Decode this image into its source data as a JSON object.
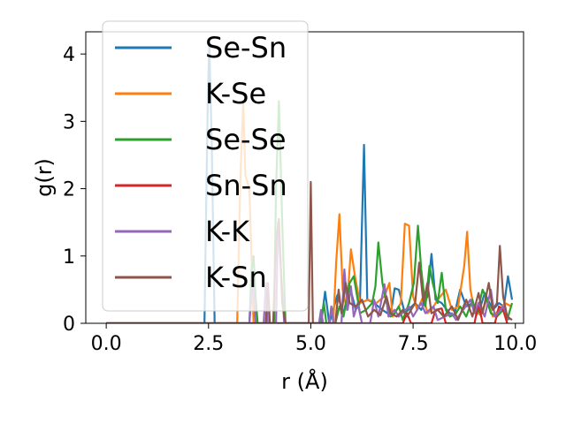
{
  "chart_data": {
    "type": "line",
    "title": "",
    "xlabel": "r (Å)",
    "ylabel": "g(r)",
    "xlim": [
      -0.5,
      10.2
    ],
    "ylim": [
      0,
      4.33
    ],
    "xticks": [
      0.0,
      2.5,
      5.0,
      7.5,
      10.0
    ],
    "xtick_labels": [
      "0.0",
      "2.5",
      "5.0",
      "7.5",
      "10.0"
    ],
    "yticks": [
      0,
      1,
      2,
      3,
      4
    ],
    "ytick_labels": [
      "0",
      "1",
      "2",
      "3",
      "4"
    ],
    "grid": false,
    "legend_position": "upper-left",
    "series": [
      {
        "name": "Se-Sn",
        "color": "#1f77b4",
        "points": [
          [
            0,
            0
          ],
          [
            2.4,
            0
          ],
          [
            2.48,
            3.3
          ],
          [
            2.52,
            4.15
          ],
          [
            2.58,
            2.6
          ],
          [
            2.65,
            0
          ],
          [
            5.25,
            0
          ],
          [
            5.35,
            0.47
          ],
          [
            5.45,
            0
          ],
          [
            5.65,
            0.42
          ],
          [
            5.8,
            0.15
          ],
          [
            5.95,
            0.55
          ],
          [
            6.1,
            0.2
          ],
          [
            6.2,
            0.3
          ],
          [
            6.3,
            2.65
          ],
          [
            6.38,
            0.35
          ],
          [
            6.55,
            0.3
          ],
          [
            6.75,
            0.2
          ],
          [
            6.95,
            0.12
          ],
          [
            7.05,
            0.52
          ],
          [
            7.15,
            0.5
          ],
          [
            7.3,
            0.15
          ],
          [
            7.55,
            0.3
          ],
          [
            7.7,
            0.2
          ],
          [
            7.85,
            0.4
          ],
          [
            7.95,
            1.03
          ],
          [
            8.05,
            0.35
          ],
          [
            8.2,
            0.3
          ],
          [
            8.35,
            0.18
          ],
          [
            8.5,
            0.1
          ],
          [
            8.65,
            0.5
          ],
          [
            8.8,
            0.25
          ],
          [
            8.95,
            0.3
          ],
          [
            9.1,
            0.15
          ],
          [
            9.25,
            0.45
          ],
          [
            9.45,
            0.2
          ],
          [
            9.6,
            0.3
          ],
          [
            9.72,
            0.25
          ],
          [
            9.82,
            0.7
          ],
          [
            9.92,
            0.35
          ]
        ]
      },
      {
        "name": "K-Se",
        "color": "#ff7f0e",
        "points": [
          [
            0,
            0
          ],
          [
            3.2,
            0
          ],
          [
            3.28,
            2.2
          ],
          [
            3.35,
            3.3
          ],
          [
            3.4,
            2.2
          ],
          [
            3.5,
            2.0
          ],
          [
            3.6,
            0
          ],
          [
            5.55,
            0
          ],
          [
            5.62,
            0.9
          ],
          [
            5.7,
            1.62
          ],
          [
            5.78,
            0.5
          ],
          [
            5.88,
            0.2
          ],
          [
            5.98,
            1.1
          ],
          [
            6.08,
            0.7
          ],
          [
            6.2,
            0.3
          ],
          [
            6.4,
            0.35
          ],
          [
            6.6,
            0.3
          ],
          [
            6.8,
            0.4
          ],
          [
            6.92,
            0.6
          ],
          [
            7.0,
            0.1
          ],
          [
            7.2,
            0.3
          ],
          [
            7.3,
            1.48
          ],
          [
            7.4,
            1.45
          ],
          [
            7.5,
            0.4
          ],
          [
            7.6,
            0.2
          ],
          [
            7.75,
            0.4
          ],
          [
            7.85,
            0.15
          ],
          [
            7.95,
            0.2
          ],
          [
            8.1,
            0.35
          ],
          [
            8.3,
            0.5
          ],
          [
            8.45,
            0.2
          ],
          [
            8.6,
            0.25
          ],
          [
            8.75,
            0.85
          ],
          [
            8.82,
            1.36
          ],
          [
            8.9,
            0.5
          ],
          [
            9.0,
            0.2
          ],
          [
            9.15,
            0.12
          ],
          [
            9.3,
            0.35
          ],
          [
            9.45,
            0.1
          ],
          [
            9.6,
            0.2
          ],
          [
            9.75,
            0.3
          ],
          [
            9.9,
            0.25
          ]
        ]
      },
      {
        "name": "Se-Se",
        "color": "#2ca02c",
        "points": [
          [
            0,
            0
          ],
          [
            3.5,
            0
          ],
          [
            3.55,
            0.8
          ],
          [
            3.6,
            1.0
          ],
          [
            3.65,
            0.4
          ],
          [
            3.7,
            0
          ],
          [
            4.1,
            0
          ],
          [
            4.15,
            2.0
          ],
          [
            4.22,
            3.3
          ],
          [
            4.3,
            1.5
          ],
          [
            4.38,
            0
          ],
          [
            5.25,
            0
          ],
          [
            5.32,
            0.3
          ],
          [
            5.38,
            0
          ],
          [
            5.6,
            0
          ],
          [
            5.7,
            0.25
          ],
          [
            5.8,
            0.1
          ],
          [
            5.95,
            0.6
          ],
          [
            6.05,
            0.7
          ],
          [
            6.2,
            0.15
          ],
          [
            6.35,
            0.2
          ],
          [
            6.5,
            0.3
          ],
          [
            6.58,
            0.55
          ],
          [
            6.65,
            1.2
          ],
          [
            6.75,
            0.6
          ],
          [
            6.85,
            0.3
          ],
          [
            6.95,
            0.1
          ],
          [
            7.05,
            0.15
          ],
          [
            7.15,
            0.25
          ],
          [
            7.25,
            0.05
          ],
          [
            7.4,
            0.3
          ],
          [
            7.52,
            0.6
          ],
          [
            7.62,
            1.45
          ],
          [
            7.7,
            0.8
          ],
          [
            7.8,
            0.25
          ],
          [
            7.9,
            0.85
          ],
          [
            7.98,
            0.6
          ],
          [
            8.1,
            0.3
          ],
          [
            8.2,
            0.75
          ],
          [
            8.3,
            0.2
          ],
          [
            8.4,
            0.1
          ],
          [
            8.55,
            0.15
          ],
          [
            8.65,
            0.25
          ],
          [
            8.8,
            0.1
          ],
          [
            8.95,
            0.35
          ],
          [
            9.05,
            0.12
          ],
          [
            9.2,
            0.5
          ],
          [
            9.3,
            0.35
          ],
          [
            9.4,
            0.15
          ],
          [
            9.55,
            0.1
          ],
          [
            9.7,
            0.2
          ],
          [
            9.8,
            0.05
          ],
          [
            9.92,
            0.3
          ]
        ]
      },
      {
        "name": "Sn-Sn",
        "color": "#d62728",
        "points": [
          [
            0,
            0
          ],
          [
            7.25,
            0
          ],
          [
            7.35,
            0.15
          ],
          [
            7.45,
            0
          ],
          [
            7.95,
            0
          ],
          [
            8.05,
            0.2
          ],
          [
            8.2,
            0.22
          ],
          [
            8.3,
            0
          ],
          [
            9.0,
            0
          ],
          [
            9.1,
            0.3
          ],
          [
            9.2,
            0
          ],
          [
            9.5,
            0
          ],
          [
            9.6,
            0.25
          ],
          [
            9.7,
            0.2
          ],
          [
            9.8,
            0
          ]
        ]
      },
      {
        "name": "K-K",
        "color": "#9467bd",
        "points": [
          [
            0,
            0
          ],
          [
            3.5,
            0
          ],
          [
            3.55,
            0.4
          ],
          [
            3.6,
            0.6
          ],
          [
            3.65,
            0
          ],
          [
            3.85,
            0
          ],
          [
            3.9,
            0.6
          ],
          [
            3.95,
            0
          ],
          [
            4.15,
            0
          ],
          [
            4.2,
            1.5
          ],
          [
            4.28,
            0.7
          ],
          [
            4.35,
            0
          ],
          [
            5.2,
            0
          ],
          [
            5.25,
            0.2
          ],
          [
            5.3,
            0
          ],
          [
            5.45,
            0
          ],
          [
            5.5,
            0.25
          ],
          [
            5.55,
            0
          ],
          [
            5.75,
            0
          ],
          [
            5.82,
            0.8
          ],
          [
            5.9,
            0.2
          ],
          [
            5.98,
            0.55
          ],
          [
            6.05,
            0.1
          ],
          [
            6.15,
            0.3
          ],
          [
            6.25,
            0
          ],
          [
            6.45,
            0
          ],
          [
            6.55,
            0.35
          ],
          [
            6.65,
            0.1
          ],
          [
            6.8,
            0.58
          ],
          [
            6.9,
            0.1
          ],
          [
            7.05,
            0.2
          ],
          [
            7.15,
            0.1
          ],
          [
            7.4,
            0.25
          ],
          [
            7.5,
            0.1
          ],
          [
            7.7,
            0.3
          ],
          [
            7.8,
            0.15
          ],
          [
            8.0,
            0.25
          ],
          [
            8.1,
            0.05
          ],
          [
            8.45,
            0.15
          ],
          [
            8.55,
            0.05
          ],
          [
            8.9,
            0.35
          ],
          [
            9.0,
            0.15
          ],
          [
            9.1,
            0.3
          ],
          [
            9.25,
            0.1
          ],
          [
            9.4,
            0.5
          ],
          [
            9.5,
            0.1
          ],
          [
            9.7,
            0.25
          ],
          [
            9.85,
            0.05
          ]
        ]
      },
      {
        "name": "K-Sn",
        "color": "#8c564b",
        "points": [
          [
            0,
            0
          ],
          [
            3.9,
            0
          ],
          [
            3.95,
            0.6
          ],
          [
            4.0,
            0
          ],
          [
            4.08,
            0
          ],
          [
            4.15,
            1.2
          ],
          [
            4.22,
            1.55
          ],
          [
            4.3,
            0.3
          ],
          [
            4.38,
            0
          ],
          [
            4.95,
            0
          ],
          [
            5.0,
            2.1
          ],
          [
            5.05,
            0
          ],
          [
            5.6,
            0
          ],
          [
            5.68,
            0.5
          ],
          [
            5.75,
            0.15
          ],
          [
            5.85,
            0.6
          ],
          [
            5.95,
            0.3
          ],
          [
            6.1,
            0.25
          ],
          [
            6.25,
            0.35
          ],
          [
            6.4,
            0.1
          ],
          [
            6.55,
            0.2
          ],
          [
            6.7,
            0.12
          ],
          [
            6.85,
            0.4
          ],
          [
            6.95,
            0.15
          ],
          [
            7.1,
            0.1
          ],
          [
            7.25,
            0.2
          ],
          [
            7.35,
            0.1
          ],
          [
            7.55,
            0.3
          ],
          [
            7.65,
            0.9
          ],
          [
            7.75,
            0.3
          ],
          [
            7.85,
            0.6
          ],
          [
            7.95,
            0.15
          ],
          [
            8.1,
            0.2
          ],
          [
            8.25,
            0.1
          ],
          [
            8.45,
            0.25
          ],
          [
            8.6,
            0.05
          ],
          [
            8.8,
            0.35
          ],
          [
            8.95,
            0.1
          ],
          [
            9.1,
            0.45
          ],
          [
            9.2,
            0.15
          ],
          [
            9.35,
            0.6
          ],
          [
            9.45,
            0.2
          ],
          [
            9.55,
            0.3
          ],
          [
            9.62,
            1.15
          ],
          [
            9.7,
            0.4
          ],
          [
            9.8,
            0.1
          ],
          [
            9.92,
            0.05
          ]
        ]
      }
    ]
  }
}
